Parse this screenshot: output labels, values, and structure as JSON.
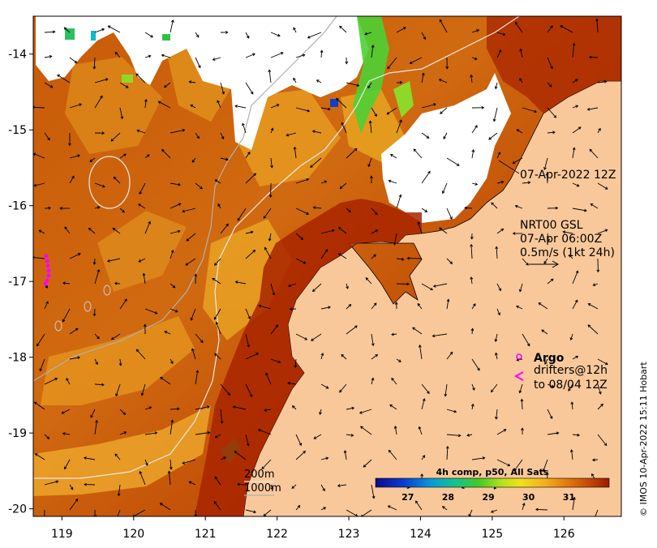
{
  "map": {
    "lon_ticks": [
      "119",
      "120",
      "121",
      "122",
      "123",
      "124",
      "125",
      "126"
    ],
    "lat_ticks": [
      "-14",
      "-15",
      "-16",
      "-17",
      "-18",
      "-19",
      "-20"
    ],
    "lon_range": [
      118.6,
      126.8
    ],
    "lat_range": [
      -20.1,
      -13.5
    ]
  },
  "annotations": {
    "sst_date": "07-Apr-2022 12Z",
    "current_product": "NRT00 GSL",
    "current_date": "07-Apr 06:00Z",
    "current_scale": "0.5m/s (1kt 24h)"
  },
  "legend": {
    "argo_label": "Argo",
    "drifters_line1": "drifters@12h",
    "drifters_line2": "to 08/04 12Z",
    "isobath_200": "200m",
    "isobath_1000": "1000m"
  },
  "colorbar": {
    "title": "4h comp, p50, All Sats",
    "ticks": [
      "27",
      "28",
      "29",
      "30",
      "31"
    ],
    "min": 26.2,
    "max": 32.0
  },
  "credit": "© IMOS 10-Apr-2022 15:11 Hobart",
  "colors": {
    "land": "#f9c89a",
    "cloud_mask": "#ffffff",
    "sst_warm": "#b33000",
    "sst_mid": "#d66a0c",
    "sst_cool": "#f0b21e",
    "argo": "#ff00ff"
  }
}
